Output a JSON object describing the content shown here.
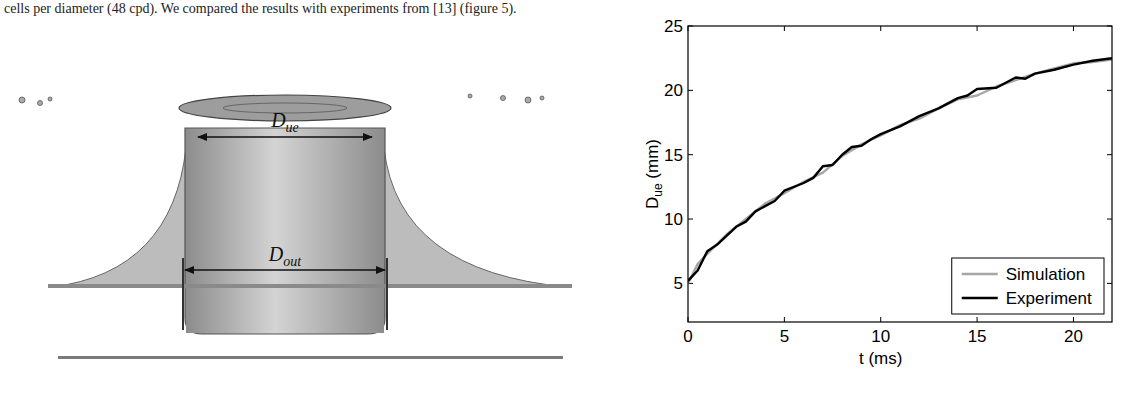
{
  "caption_line": "cells per diameter (48 cpd). We compared the results with experiments from [13] (figure 5).",
  "illustration": {
    "labels": [
      {
        "text": "D",
        "subscript": "ue"
      },
      {
        "text": "D",
        "subscript": "out"
      }
    ]
  },
  "chart_data": {
    "type": "line",
    "x_label": "t (ms)",
    "y_label": {
      "text": "D",
      "subscript": "ue",
      "suffix": " (mm)"
    },
    "xlim": [
      0,
      22
    ],
    "xticks": [
      0,
      5,
      10,
      15,
      20
    ],
    "ylim": [
      2,
      25
    ],
    "yticks": [
      5,
      10,
      15,
      20,
      25
    ],
    "grid": false,
    "legend": "lower right",
    "series": [
      {
        "name": "Simulation",
        "color": "#a6a6a6",
        "x": [
          0,
          0.5,
          1,
          2,
          3,
          4,
          5,
          6,
          7,
          8,
          9,
          10,
          11,
          12,
          13,
          14,
          15,
          16,
          17,
          18,
          19,
          20,
          21,
          22
        ],
        "values": [
          5,
          6.5,
          7.3,
          8.8,
          10,
          11.2,
          12,
          12.9,
          13.6,
          14.9,
          15.8,
          16.5,
          17.3,
          17.8,
          18.6,
          19.3,
          19.6,
          20.3,
          20.8,
          21.3,
          21.7,
          22.1,
          22.2,
          22.4
        ]
      },
      {
        "name": "Experiment",
        "color": "#000000",
        "x": [
          0,
          0.5,
          1,
          1.5,
          2,
          2.5,
          3,
          3.5,
          4,
          4.5,
          5,
          6,
          6.5,
          7,
          7.5,
          8,
          8.5,
          9,
          9.5,
          10,
          11,
          12,
          13,
          14,
          14.5,
          15,
          16,
          17,
          17.5,
          18,
          19,
          20,
          21,
          22
        ],
        "values": [
          5.2,
          6,
          7.5,
          8,
          8.7,
          9.4,
          9.8,
          10.6,
          11,
          11.4,
          12.2,
          12.8,
          13.2,
          14.1,
          14.2,
          15,
          15.6,
          15.7,
          16.2,
          16.6,
          17.2,
          18,
          18.6,
          19.4,
          19.6,
          20.1,
          20.2,
          21,
          20.9,
          21.3,
          21.6,
          22,
          22.3,
          22.5
        ]
      }
    ]
  }
}
